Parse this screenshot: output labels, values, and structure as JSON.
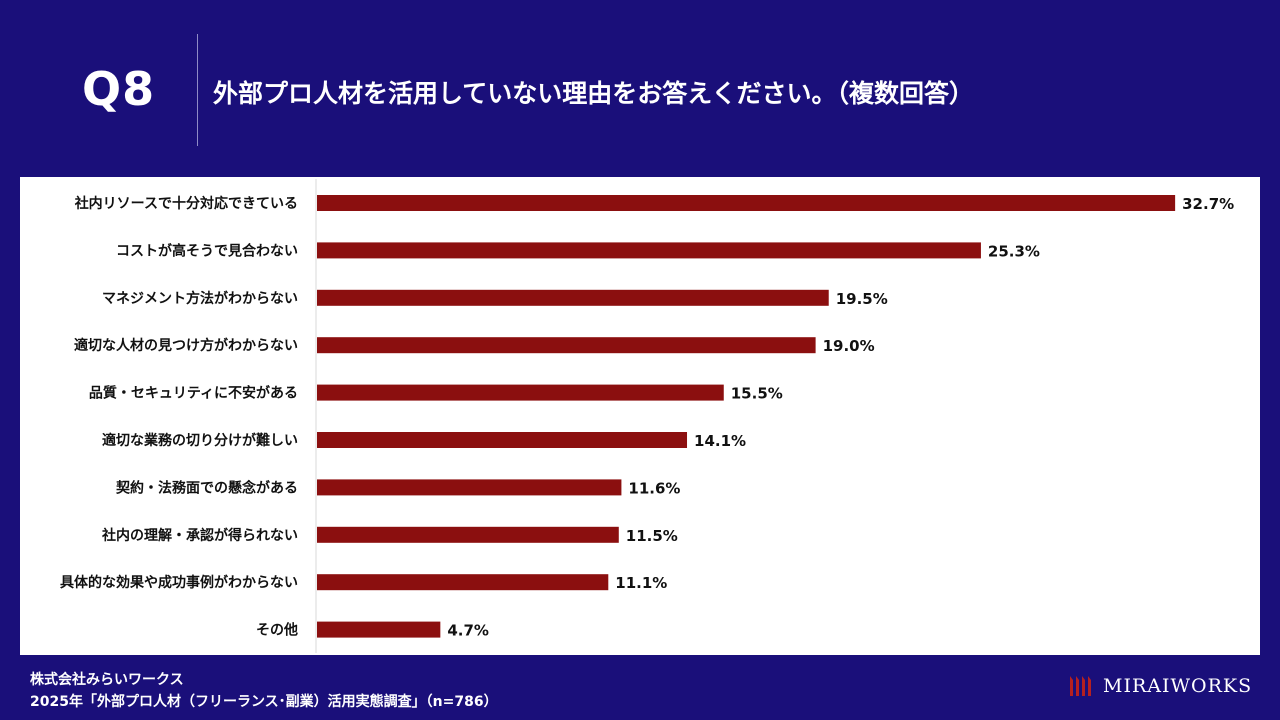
{
  "header": {
    "question_number": "Q8",
    "question_text": "外部プロ人材を活用していない理由をお答えください。（複数回答）"
  },
  "footer": {
    "company": "株式会社みらいワークス",
    "source": "2025年「外部プロ人材（フリーランス･副業）活用実態調査」（n=786）",
    "logo_text": "MIRAIWORKS"
  },
  "colors": {
    "background": "#1a0f7a",
    "bar": "#8b0f0f",
    "panel": "#ffffff",
    "logo_accent": "#b52020"
  },
  "chart_data": {
    "type": "bar",
    "orientation": "horizontal",
    "title": "外部プロ人材を活用していない理由をお答えください。（複数回答）",
    "categories": [
      "社内リソースで十分対応できている",
      "コストが高そうで見合わない",
      "マネジメント方法がわからない",
      "適切な人材の見つけ方がわからない",
      "品質・セキュリティに不安がある",
      "適切な業務の切り分けが難しい",
      "契約・法務面での懸念がある",
      "社内の理解・承認が得られない",
      "具体的な効果や成功事例がわからない",
      "その他"
    ],
    "values": [
      32.7,
      25.3,
      19.5,
      19.0,
      15.5,
      14.1,
      11.6,
      11.5,
      11.1,
      4.7
    ],
    "value_labels": [
      "32.7%",
      "25.3%",
      "19.5%",
      "19.0%",
      "15.5%",
      "14.1%",
      "11.6%",
      "11.5%",
      "11.1%",
      "4.7%"
    ],
    "unit": "%",
    "xlim": [
      0,
      33
    ],
    "grid": false,
    "legend": "none"
  }
}
